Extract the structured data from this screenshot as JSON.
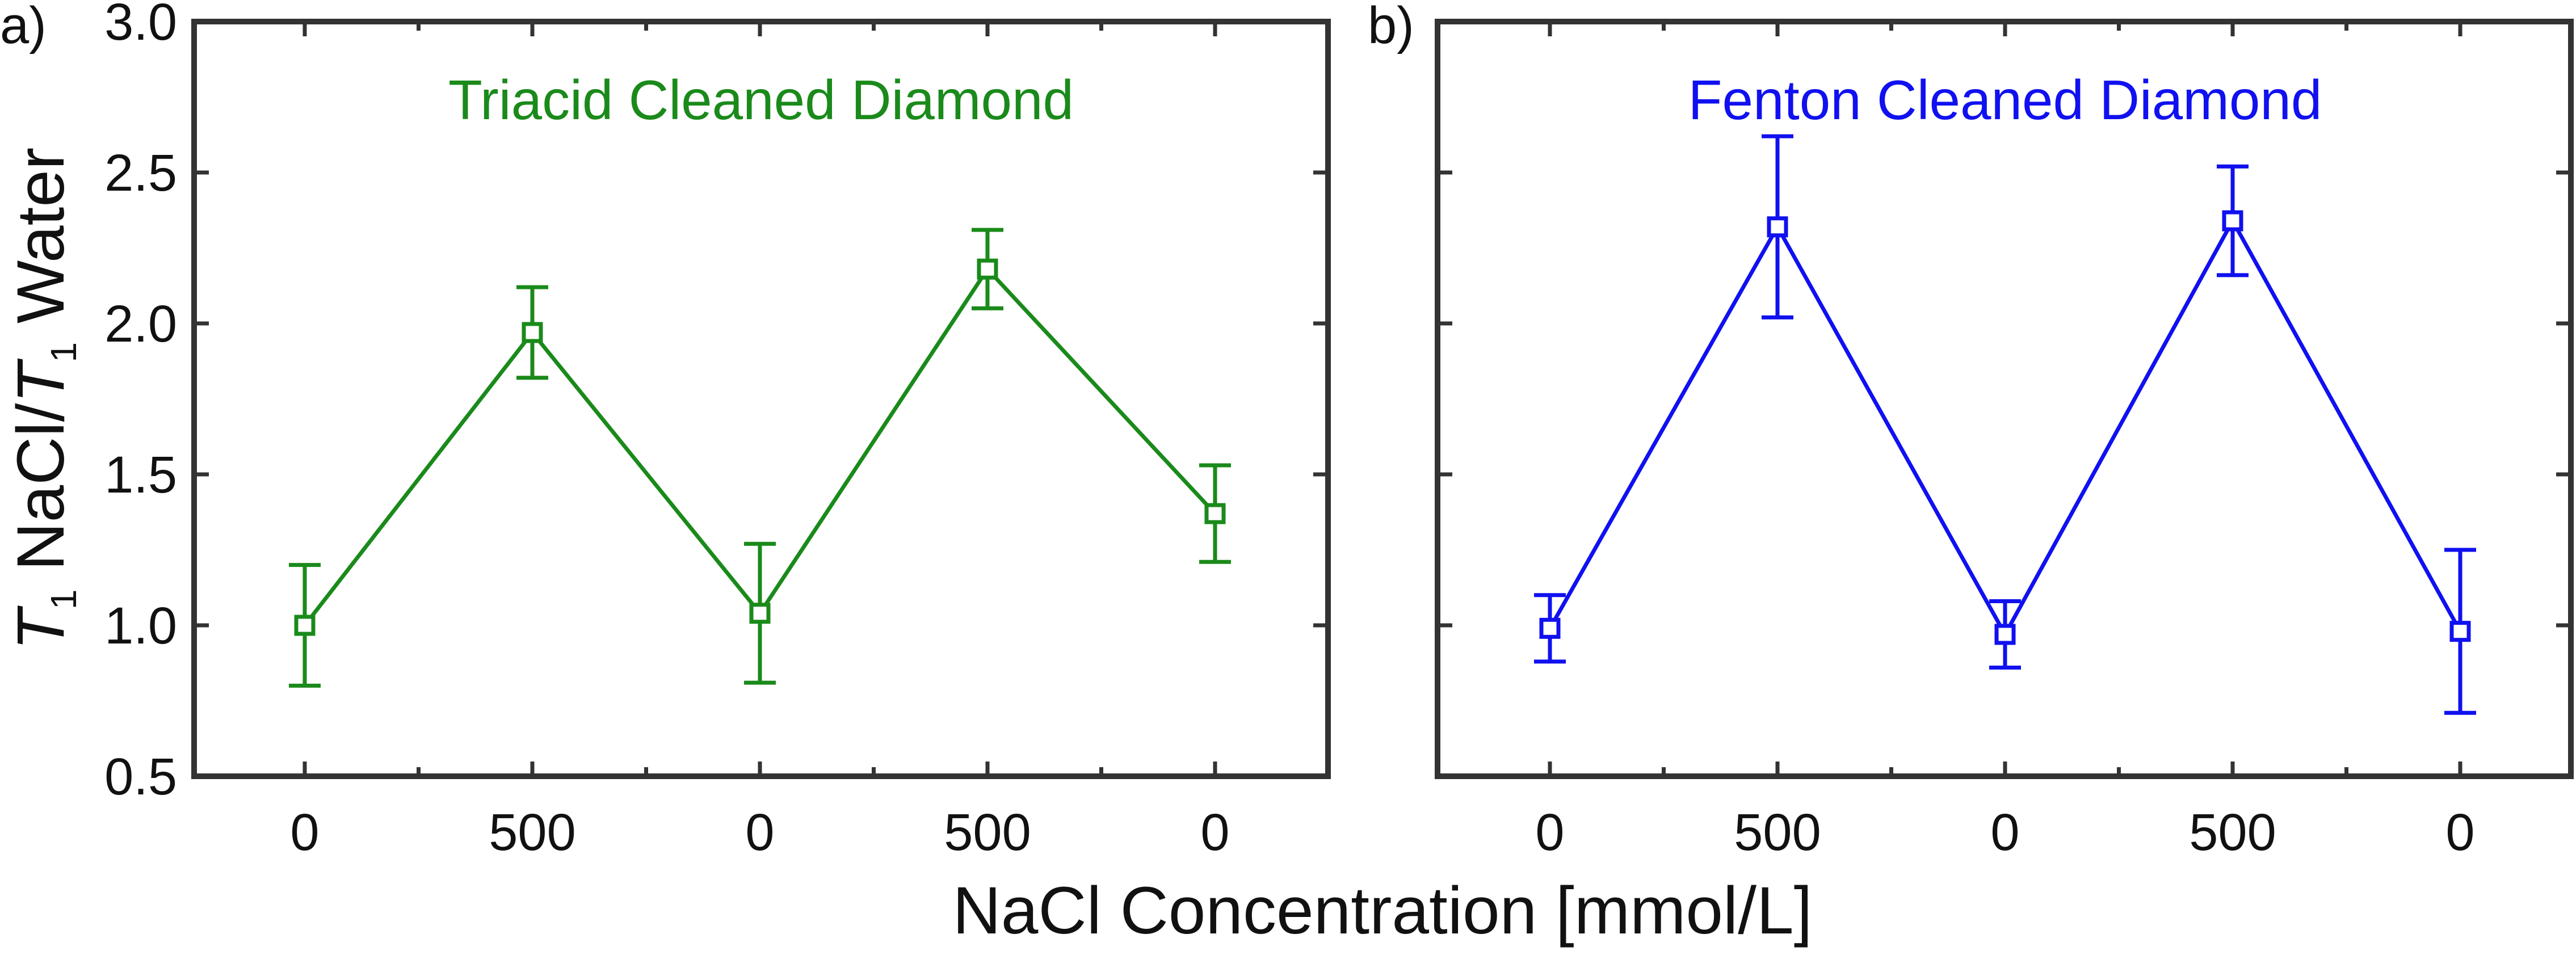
{
  "chart_data": [
    {
      "type": "line",
      "panel_label": "a)",
      "title": "Triacid Cleaned Diamond",
      "color": "#1a8a1a",
      "categories": [
        "0",
        "500",
        "0",
        "500",
        "0"
      ],
      "values": [
        1.0,
        1.97,
        1.04,
        2.18,
        1.37
      ],
      "error": [
        0.2,
        0.15,
        0.23,
        0.13,
        0.16
      ],
      "ylim": [
        0.5,
        3.0
      ],
      "yticks": [
        "0.5",
        "1.0",
        "1.5",
        "2.0",
        "2.5",
        "3.0"
      ],
      "ylabel": {
        "italic_1": "T",
        "sub_1": "1",
        "mid": " NaCl/",
        "italic_2": "T",
        "sub_2": "1",
        "end": " Water"
      },
      "marker": "open-square"
    },
    {
      "type": "line",
      "panel_label": "b)",
      "title": "Fenton Cleaned Diamond",
      "color": "#1010f0",
      "categories": [
        "0",
        "500",
        "0",
        "500",
        "0"
      ],
      "values": [
        0.99,
        2.32,
        0.97,
        2.34,
        0.98
      ],
      "error": [
        0.11,
        0.3,
        0.11,
        0.18,
        0.27
      ],
      "ylim": [
        0.5,
        3.0
      ],
      "marker": "open-square"
    }
  ],
  "xlabel": "NaCl Concentration [mmol/L]"
}
